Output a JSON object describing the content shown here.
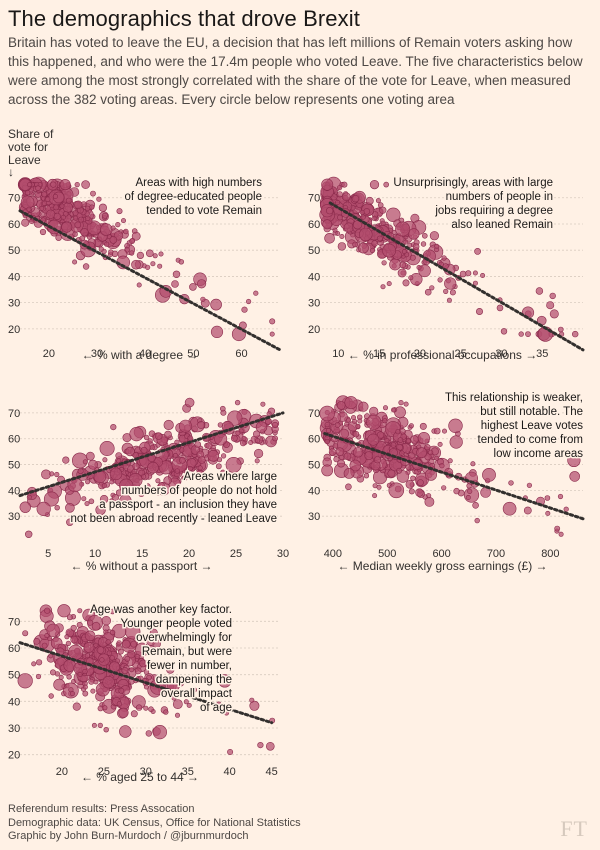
{
  "page": {
    "title": "The demographics that drove Brexit",
    "subtitle": "Britain has voted to leave the EU, a decision that has left millions of Remain voters asking how this happened, and who were the 17.4m people who voted Leave. The five characteristics below were among the most strongly correlated with the share of the vote for Leave, when measured across the 382 voting areas. Every circle below represents one voting area",
    "ylabel": "Share of vote for Leave",
    "ylabel_arrow": "↓",
    "footer": [
      "Referendum results: Press Assocation",
      "Demographic data: UK Census, Office for National Statistics",
      "Graphic by John Burn-Murdoch / @jburnmurdoch"
    ],
    "logo": "FT"
  },
  "colors": {
    "background": "#fff1e5",
    "dot_fill": "#b34d6e",
    "dot_stroke": "#8a2a4b",
    "trend": "#33302e",
    "grid": "#d9ccc0",
    "text": "#33302e"
  },
  "chart_data": [
    {
      "type": "scatter",
      "id": "degree",
      "xlabel": "← % with a degree →",
      "ylabel": "Share of vote for Leave",
      "xlim": [
        14,
        68
      ],
      "ylim": [
        15,
        76
      ],
      "xticks": [
        20,
        30,
        40,
        50,
        60
      ],
      "yticks": [
        20,
        30,
        40,
        50,
        60,
        70
      ],
      "annotation": [
        "Areas with high numbers",
        "of degree-educated people",
        "tended to vote Remain"
      ],
      "trend": [
        [
          14,
          65
        ],
        [
          68,
          12
        ]
      ],
      "cluster": {
        "x_center": 23,
        "x_spread": 12,
        "slope": -0.98,
        "intercept": 87.5,
        "noise": 6
      }
    },
    {
      "type": "scatter",
      "id": "professional",
      "xlabel": "← % in professional occupations →",
      "ylabel": "Share of vote for Leave",
      "xlim": [
        8,
        40
      ],
      "ylim": [
        15,
        76
      ],
      "xticks": [
        10,
        15,
        20,
        25,
        30,
        35
      ],
      "yticks": [
        20,
        30,
        40,
        50,
        60,
        70
      ],
      "annotation": [
        "Unsurprisingly, areas with large",
        "numbers of people in",
        "jobs requiring a degree",
        "also leaned Remain"
      ],
      "trend": [
        [
          9,
          68
        ],
        [
          40,
          12
        ]
      ],
      "cluster": {
        "x_center": 14,
        "x_spread": 8,
        "slope": -1.8,
        "intercept": 84,
        "noise": 6
      }
    },
    {
      "type": "scatter",
      "id": "passport",
      "xlabel": "← % without a passport →",
      "ylabel": "Share of vote for Leave",
      "xlim": [
        2,
        30
      ],
      "ylim": [
        20,
        75
      ],
      "xticks": [
        5,
        10,
        15,
        20,
        25,
        30
      ],
      "yticks": [
        30,
        40,
        50,
        60,
        70
      ],
      "annotation": [
        "Areas where large",
        "numbers of people do not hold",
        "a passport - an inclusion they have",
        "not been abroad recently - leaned Leave"
      ],
      "trend": [
        [
          2,
          38
        ],
        [
          30,
          70
        ]
      ],
      "cluster": {
        "x_center": 18,
        "x_spread": 10,
        "slope": 1.1,
        "intercept": 33,
        "noise": 6
      }
    },
    {
      "type": "scatter",
      "id": "earnings",
      "xlabel": "← Median weekly gross earnings (£) →",
      "ylabel": "Share of vote for Leave",
      "xlim": [
        380,
        860
      ],
      "ylim": [
        20,
        75
      ],
      "xticks": [
        400,
        500,
        600,
        700,
        800
      ],
      "yticks": [
        30,
        40,
        50,
        60,
        70
      ],
      "annotation": [
        "This relationship is weaker,",
        "but still notable. The",
        "highest Leave votes",
        "tended to come from",
        "low income areas"
      ],
      "trend": [
        [
          385,
          62
        ],
        [
          860,
          29
        ]
      ],
      "cluster": {
        "x_center": 500,
        "x_spread": 120,
        "slope": -0.065,
        "intercept": 88,
        "noise": 8
      }
    },
    {
      "type": "scatter",
      "id": "age",
      "xlabel": "← % aged 25 to 44 →",
      "ylabel": "Share of vote for Leave",
      "xlim": [
        15,
        46
      ],
      "ylim": [
        18,
        75
      ],
      "xticks": [
        20,
        25,
        30,
        35,
        40,
        45
      ],
      "yticks": [
        20,
        30,
        40,
        50,
        60,
        70
      ],
      "annotation": [
        "Age was another key factor.",
        "Younger people voted",
        "overwhelmingly for",
        "Remain, but were",
        "fewer in number,",
        "dampening the",
        "overall impact",
        "of age"
      ],
      "trend": [
        [
          15,
          62
        ],
        [
          45,
          32
        ]
      ],
      "cluster": {
        "x_center": 25,
        "x_spread": 6,
        "slope": -1.0,
        "intercept": 78,
        "noise": 8
      }
    }
  ]
}
